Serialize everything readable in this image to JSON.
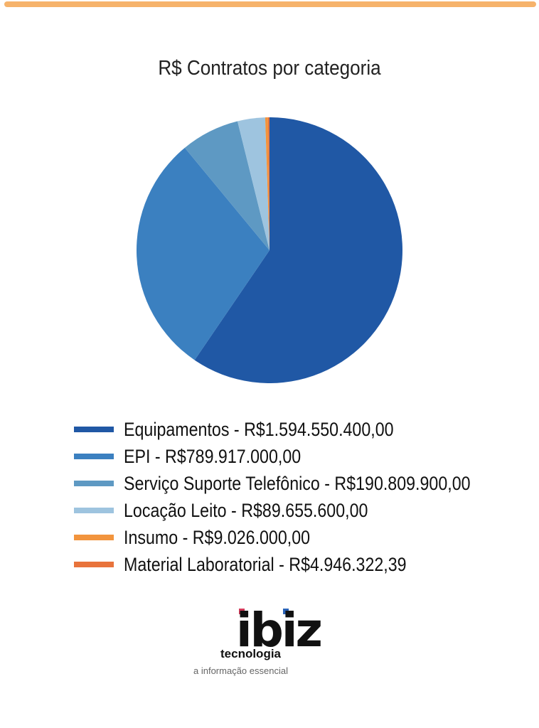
{
  "chart_data": {
    "type": "pie",
    "title": "R$ Contratos por categoria",
    "legend_position": "bottom",
    "categories": [
      "Equipamentos",
      "EPI",
      "Serviço Suporte Telefônico",
      "Locação Leito",
      "Insumo",
      "Material Laboratorial"
    ],
    "values": [
      1594550400.0,
      789917000.0,
      190809900.0,
      89655600.0,
      9026000.0,
      4946322.39
    ],
    "legend_labels": [
      "Equipamentos - R$1.594.550.400,00",
      "EPI - R$789.917.000,00",
      "Serviço Suporte Telefônico - R$190.809.900,00",
      "Locação Leito - R$89.655.600,00",
      "Insumo - R$9.026.000,00",
      "Material Laboratorial - R$4.946.322,39"
    ],
    "colors": [
      "#2058a5",
      "#3b80c0",
      "#5e99c3",
      "#9ec4df",
      "#f2943d",
      "#e8733b"
    ]
  },
  "logo": {
    "mark": "ibiz",
    "subtitle": "tecnologia",
    "tagline": "a informação essencial"
  }
}
